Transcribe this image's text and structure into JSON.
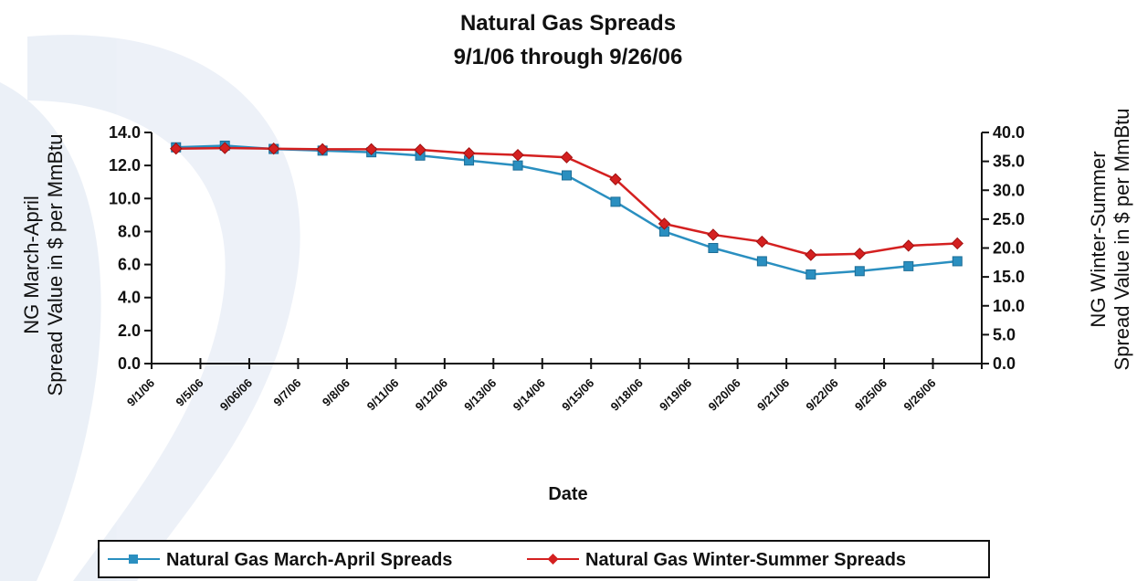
{
  "chart_data": {
    "type": "line",
    "title": "Natural Gas Spreads",
    "subtitle": "9/1/06 through 9/26/06",
    "xlabel": "Date",
    "ylabel_left_line1": "NG March-April",
    "ylabel_left_line2": "Spread Value in $ per MmBtu",
    "ylabel_right_line1": "NG Winter-Summer",
    "ylabel_right_line2": "Spread Value in $ per MmBtu",
    "categories": [
      "9/1/06",
      "9/5/06",
      "9/06/06",
      "9/7/06",
      "9/8/06",
      "9/11/06",
      "9/12/06",
      "9/13/06",
      "9/14/06",
      "9/15/06",
      "9/18/06",
      "9/19/06",
      "9/20/06",
      "9/21/06",
      "9/22/06",
      "9/25/06",
      "9/26/06"
    ],
    "ylim_left": [
      0,
      14
    ],
    "ylim_right": [
      0,
      40
    ],
    "yticks_left": [
      "0.0",
      "2.0",
      "4.0",
      "6.0",
      "8.0",
      "10.0",
      "12.0",
      "14.0"
    ],
    "yticks_right": [
      "0.0",
      "5.0",
      "10.0",
      "15.0",
      "20.0",
      "25.0",
      "30.0",
      "35.0",
      "40.0"
    ],
    "series": [
      {
        "name": "Natural Gas March-April Spreads",
        "axis": "left",
        "color": "#2a8fc0",
        "values": [
          13.1,
          13.2,
          13.0,
          12.9,
          12.8,
          12.6,
          12.3,
          12.0,
          11.4,
          9.8,
          8.0,
          7.0,
          6.2,
          5.4,
          5.6,
          5.9,
          6.2
        ]
      },
      {
        "name": "Natural Gas Winter-Summer Spreads",
        "axis": "right",
        "color": "#d42020",
        "values": [
          37.2,
          37.3,
          37.2,
          37.1,
          37.1,
          37.0,
          36.4,
          36.1,
          35.7,
          31.9,
          24.2,
          22.3,
          21.1,
          18.8,
          19.0,
          20.4,
          20.8
        ]
      }
    ],
    "legend_position": "bottom"
  }
}
